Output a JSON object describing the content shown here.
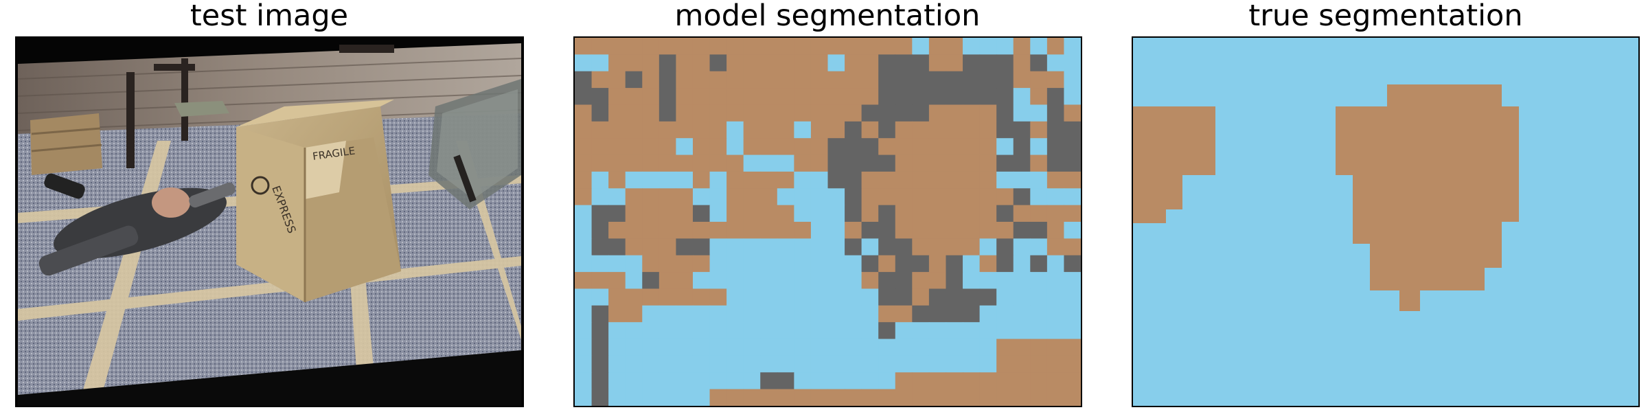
{
  "titles": {
    "test_image": "test image",
    "model_segmentation": "model segmentation",
    "true_segmentation": "true segmentation"
  },
  "colors": {
    "sky_blue": "#87ceeb",
    "tan": "#b98b64",
    "gray": "#646464",
    "border": "#000000"
  },
  "segmentation_legend_classes": [
    "sky-blue",
    "tan",
    "gray"
  ],
  "model_grid": {
    "cols": 30,
    "rows": 22,
    "cells": [
      "TTTTTTTTTTTTTTTTTTTTBTTBBBTBTB",
      "BBTTTGTTGTTTTTTBTTGGGTTGGGTGBB",
      "GTTGTGTTTTTTTTTTTTGGGGGGGGTTTB",
      "GGTTTGTTTTTTTTTTTTGGGGGGGGBTGB",
      "TGTTTGTTTTTTTTTTTGGGGTTTTGBBGT",
      "TTTTTTTTTBTTTBTTGTGTTTTTTGGTGG",
      "TTTTTTBTTBTTTTTGGGTTTTTTTBGBGG",
      "TTTTTTTTTTBBBTTGGGGTTTTTTGGTGG",
      "TBTBBBBTBTTTTBBGGTTTTTTTTBBBTT",
      "TBBTTTTBBTTTBBBBGTTTTTTTTTGBBB",
      "BGGTTTTGBTTTTBBBGTGTTTTTTGTTTT",
      "BGTTTTTTTTTTTTBBTGGTTTTTTTGGTB",
      "BGGTTTGGBBBBBBBBGBGGTTTTBGBBTT",
      "BBBBTTTTBBBBBBBBBGTGGTGBTGBGBG",
      "TTTBGTTBBBBBBBBBBTGGTTGBBBBBBB",
      "BBTTTTTTTBBBBBBBBBGGTGGGGBBBBB",
      "BGTTBBBBBBBBBBBBBBTTGGGGBBBBBB",
      "BGBBBBBBBBBBBBBBBBGBBBBBBBBBBB",
      "BGBBBBBBBBBBBBBBBBBBBBBBBTTTTT",
      "BGBBBBBBBBBBBBBBBBBBBBBBBTTTTT",
      "BGBBBBBBBBBGGBBBBBBTTTTTTTTTTT",
      "BGBBBBBBTTTTTTTTTTTTTTTTTTTTTT"
    ]
  },
  "true_blob_left": "tan",
  "true_blob_center": "tan"
}
